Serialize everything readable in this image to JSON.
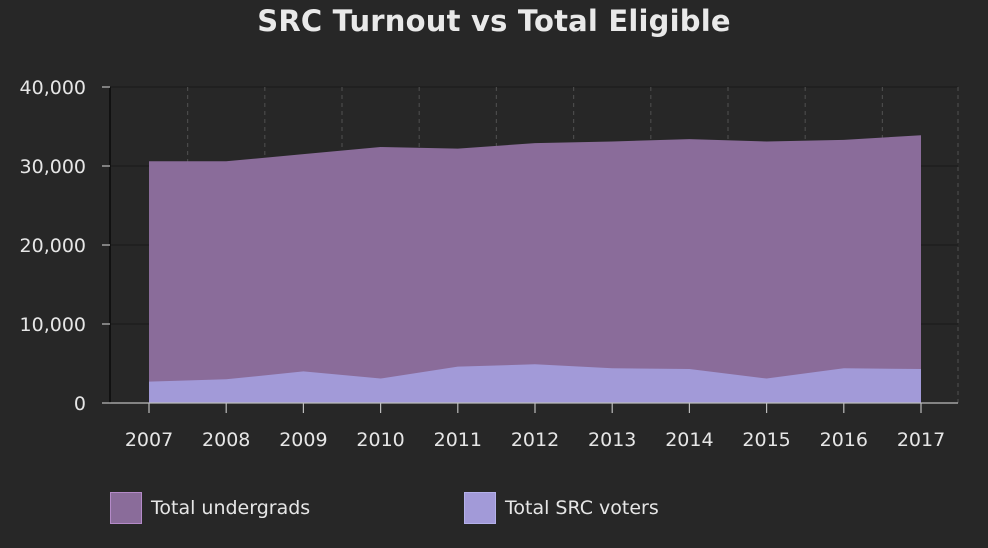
{
  "chart_data": {
    "type": "area",
    "title": "SRC Turnout vs Total Eligible",
    "categories": [
      "2007",
      "2008",
      "2009",
      "2010",
      "2011",
      "2012",
      "2013",
      "2014",
      "2015",
      "2016",
      "2017"
    ],
    "ylim": [
      0,
      40000
    ],
    "yticks": [
      0,
      10000,
      20000,
      30000,
      40000
    ],
    "ytick_labels": [
      "0",
      "10,000",
      "20,000",
      "30,000",
      "40,000"
    ],
    "grid": true,
    "legend_position": "bottom",
    "series": [
      {
        "name": "Total undergrads",
        "values": [
          30600,
          30600,
          31500,
          32400,
          32200,
          32900,
          33100,
          33400,
          33100,
          33300,
          33900
        ],
        "color": "#8a6c9a",
        "border_color": "#b48ac8"
      },
      {
        "name": "Total SRC voters",
        "values": [
          2700,
          3000,
          4000,
          3100,
          4600,
          4900,
          4400,
          4300,
          3100,
          4400,
          4300
        ],
        "color": "#a29ad8",
        "border_color": "#b4b0ea"
      }
    ]
  }
}
